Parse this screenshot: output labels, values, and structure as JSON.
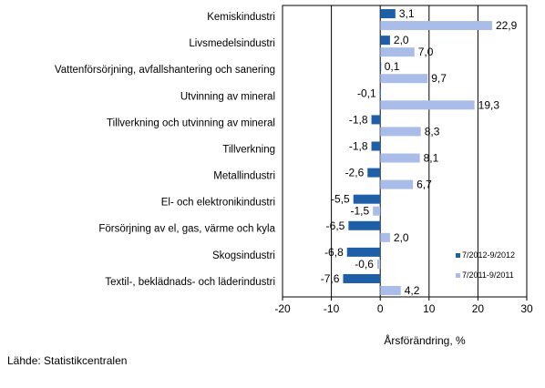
{
  "chart_data": {
    "type": "bar",
    "orientation": "horizontal",
    "categories": [
      "Kemiskindustri",
      "Livsmedelsindustri",
      "Vattenförsörjning, avfallshantering och sanering",
      "Utvinning av mineral",
      "Tillverkning och utvinning av mineral",
      "Tillverkning",
      "Metallindustri",
      "El- och elektronikindustri",
      "Försörjning av el, gas, värme och kyla",
      "Skogsindustri",
      "Textil-, beklädnads- och läderindustri"
    ],
    "series": [
      {
        "name": "7/2012-9/2012",
        "color": "#1f5fa8",
        "values": [
          3.1,
          2.0,
          0.1,
          -0.1,
          -1.8,
          -1.8,
          -2.6,
          -5.5,
          -6.5,
          -6.8,
          -7.6
        ],
        "labels": [
          "3,1",
          "2,0",
          "0,1",
          "-0,1",
          "-1,8",
          "-1,8",
          "-2,6",
          "-5,5",
          "-6,5",
          "-6,8",
          "-7,6"
        ]
      },
      {
        "name": "7/2011-9/2011",
        "color": "#a9bde8",
        "values": [
          22.9,
          7.0,
          9.7,
          19.3,
          8.3,
          8.1,
          6.7,
          -1.5,
          2.0,
          -0.6,
          4.2
        ],
        "labels": [
          "22,9",
          "7,0",
          "9,7",
          "19,3",
          "8,3",
          "8,1",
          "6,7",
          "-1,5",
          "2,0",
          "-0,6",
          "4,2"
        ]
      }
    ],
    "xlim": [
      -20,
      30
    ],
    "xticks": [
      -20,
      -10,
      0,
      10,
      20,
      30
    ],
    "xlabel": "Årsförändring, %",
    "grid": "vertical",
    "legend_position": "bottom-right"
  },
  "source_text": "Lähde: Statistikcentralen"
}
